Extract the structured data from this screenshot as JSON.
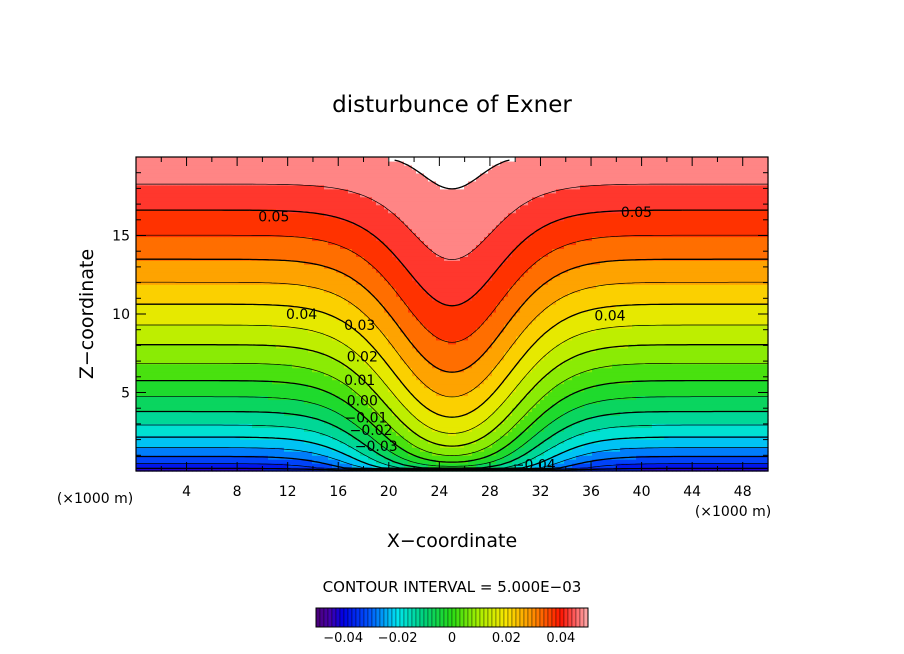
{
  "chart_data": {
    "type": "heatmap",
    "title": "disturbunce of Exner",
    "xlabel": "X−coordinate",
    "ylabel": "Z−coordinate",
    "x_unit": "(×1000 m)",
    "y_unit": "(×1000 m)",
    "xlim": [
      0,
      50
    ],
    "ylim": [
      0,
      20
    ],
    "x_ticks": [
      "4",
      "8",
      "12",
      "16",
      "20",
      "24",
      "28",
      "32",
      "36",
      "40",
      "44",
      "48"
    ],
    "y_ticks": [
      "5",
      "10",
      "15"
    ],
    "contour_interval_text": "CONTOUR INTERVAL = 5.000E−03",
    "contour_interval": 0.005,
    "value_range": [
      -0.045,
      0.05
    ],
    "colorbar": {
      "min": -0.05,
      "max": 0.05,
      "ticks": [
        "−0.04",
        "−0.02",
        "0",
        "0.02",
        "0.04"
      ],
      "tick_values": [
        -0.04,
        -0.02,
        0,
        0.02,
        0.04
      ]
    },
    "contour_labels": [
      {
        "text": "0.05",
        "x": 10.9,
        "y": 16.2
      },
      {
        "text": "0.05",
        "x": 39.6,
        "y": 16.5
      },
      {
        "text": "0.04",
        "x": 13.1,
        "y": 10.0
      },
      {
        "text": "0.04",
        "x": 37.5,
        "y": 9.9
      },
      {
        "text": "0.03",
        "x": 17.7,
        "y": 9.3
      },
      {
        "text": "0.02",
        "x": 17.9,
        "y": 7.3
      },
      {
        "text": "0.01",
        "x": 17.7,
        "y": 5.8
      },
      {
        "text": "0.00",
        "x": 17.9,
        "y": 4.5
      },
      {
        "text": "−0.01",
        "x": 18.2,
        "y": 3.4
      },
      {
        "text": "−0.02",
        "x": 18.6,
        "y": 2.6
      },
      {
        "text": "−0.03",
        "x": 19.0,
        "y": 1.6
      },
      {
        "text": "−0.04",
        "x": 31.5,
        "y": 0.4
      }
    ],
    "field_model": "pi(x,z) = -0.045 + 0.095*((z/20) + 0.65*exp(-((x-25)/6.5)^2)*(1-z/20)^0.8*(z/20)^0.25)^0.6 ; white where value > 0.05",
    "grid": false,
    "legend": "colorbar bottom-center"
  }
}
